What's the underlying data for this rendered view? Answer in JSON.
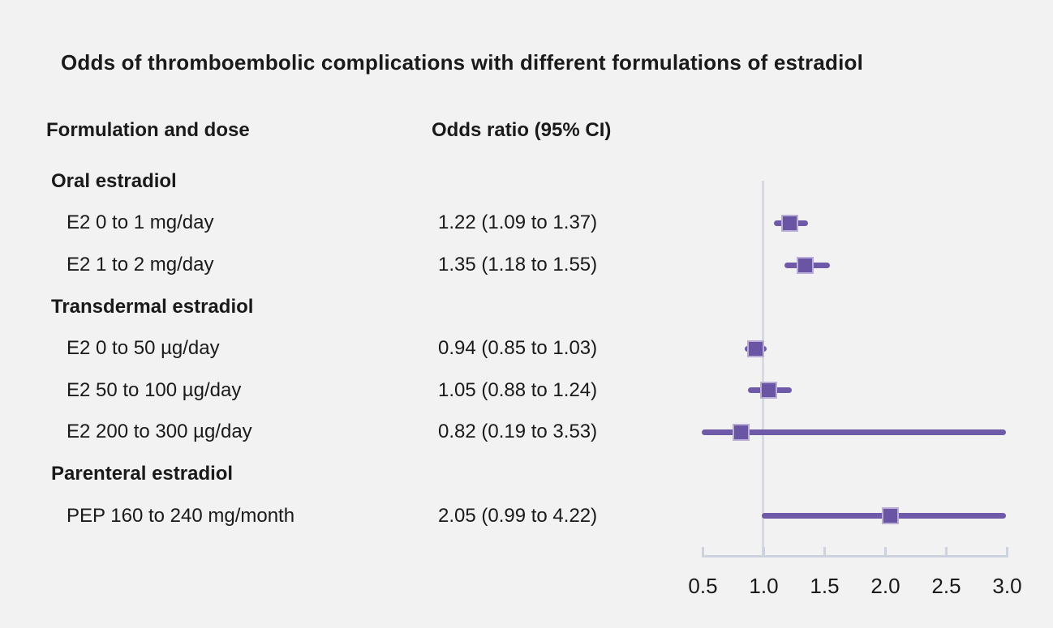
{
  "title": "Odds of thromboembolic complications with different formulations of estradiol",
  "columns": {
    "formulation": "Formulation and dose",
    "odds_ratio": "Odds ratio (95% CI)"
  },
  "colors": {
    "background": "#f2f2f2",
    "text": "#1a1a1a",
    "ci_line_purple": "#6e5aa8",
    "marker_fill_purple": "#6a55a4",
    "marker_border_lavender": "#b9add8",
    "axis_gray": "#ccd3de",
    "reference_line_gray": "#d5dae3"
  },
  "chart_data": {
    "type": "forest",
    "title": "Odds of thromboembolic complications with different formulations of estradiol",
    "xlabel": "",
    "ylabel": "",
    "xlim": [
      0.5,
      3.0
    ],
    "reference_line_x": 1.0,
    "ticks": [
      0.5,
      1.0,
      1.5,
      2.0,
      2.5,
      3.0
    ],
    "tick_labels": [
      "0.5",
      "1.0",
      "1.5",
      "2.0",
      "2.5",
      "3.0"
    ],
    "legend": "none",
    "grid": "off",
    "rows": [
      {
        "kind": "section",
        "label": "Oral estradiol"
      },
      {
        "kind": "item",
        "label": "E2 0 to 1 mg/day",
        "or_text": "1.22 (1.09 to 1.37)",
        "or": 1.22,
        "lo": 1.09,
        "hi": 1.37
      },
      {
        "kind": "item",
        "label": "E2 1 to 2 mg/day",
        "or_text": "1.35 (1.18 to 1.55)",
        "or": 1.35,
        "lo": 1.18,
        "hi": 1.55
      },
      {
        "kind": "section",
        "label": "Transdermal estradiol"
      },
      {
        "kind": "item",
        "label": "E2 0 to 50 µg/day",
        "or_text": "0.94 (0.85 to 1.03)",
        "or": 0.94,
        "lo": 0.85,
        "hi": 1.03
      },
      {
        "kind": "item",
        "label": "E2 50 to 100 µg/day",
        "or_text": "1.05 (0.88 to 1.24)",
        "or": 1.05,
        "lo": 0.88,
        "hi": 1.24
      },
      {
        "kind": "item",
        "label": "E2 200 to 300 µg/day",
        "or_text": "0.82 (0.19 to 3.53)",
        "or": 0.82,
        "lo": 0.19,
        "hi": 3.53
      },
      {
        "kind": "section",
        "label": "Parenteral estradiol"
      },
      {
        "kind": "item",
        "label": "PEP 160 to 240 mg/month",
        "or_text": "2.05 (0.99 to 4.22)",
        "or": 2.05,
        "lo": 0.99,
        "hi": 4.22
      }
    ]
  }
}
